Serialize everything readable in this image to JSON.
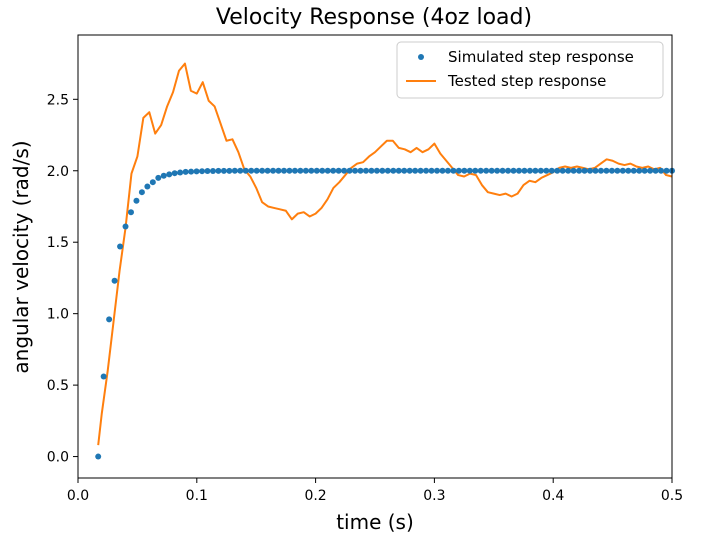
{
  "chart_data": {
    "type": "line",
    "title": "Velocity Response (4oz load)",
    "xlabel": "time (s)",
    "ylabel": "angular velocity (rad/s)",
    "xlim": [
      0.0,
      0.5
    ],
    "ylim": [
      -0.15,
      2.95
    ],
    "xticks": [
      "0.0",
      "0.1",
      "0.2",
      "0.3",
      "0.4",
      "0.5"
    ],
    "yticks": [
      "0.0",
      "0.5",
      "1.0",
      "1.5",
      "2.0",
      "2.5"
    ],
    "grid": false,
    "legend_position": "top-right",
    "series": [
      {
        "name": "Simulated step response",
        "style": "markers",
        "color": "#1f77b4",
        "x": [
          0.017,
          0.0216,
          0.0262,
          0.0308,
          0.0354,
          0.04,
          0.0446,
          0.0492,
          0.0538,
          0.0584,
          0.063,
          0.0676,
          0.0722,
          0.0768,
          0.0814,
          0.086,
          0.0906,
          0.0952,
          0.0998,
          0.1044,
          0.109,
          0.1136,
          0.1182,
          0.1228,
          0.1274,
          0.132,
          0.1366,
          0.1412,
          0.1458,
          0.1504,
          0.155,
          0.1596,
          0.1642,
          0.1688,
          0.1734,
          0.178,
          0.1826,
          0.1872,
          0.1918,
          0.1964,
          0.201,
          0.2056,
          0.2102,
          0.2148,
          0.2194,
          0.224,
          0.2286,
          0.2332,
          0.2378,
          0.2424,
          0.247,
          0.2516,
          0.2562,
          0.2608,
          0.2654,
          0.27,
          0.2746,
          0.2792,
          0.2838,
          0.2884,
          0.293,
          0.2976,
          0.3022,
          0.3068,
          0.3114,
          0.316,
          0.3206,
          0.3252,
          0.3298,
          0.3344,
          0.339,
          0.3436,
          0.3482,
          0.3528,
          0.3574,
          0.362,
          0.3666,
          0.3712,
          0.3758,
          0.3804,
          0.385,
          0.3896,
          0.3942,
          0.3988,
          0.4034,
          0.408,
          0.4126,
          0.4172,
          0.4218,
          0.4264,
          0.431,
          0.4356,
          0.4402,
          0.4448,
          0.4494,
          0.454,
          0.4586,
          0.4632,
          0.4678,
          0.4724,
          0.477,
          0.4816,
          0.4862,
          0.4908,
          0.4954,
          0.5
        ],
        "y": [
          0.0,
          0.56,
          0.96,
          1.23,
          1.47,
          1.61,
          1.71,
          1.79,
          1.85,
          1.89,
          1.92,
          1.95,
          1.965,
          1.975,
          1.983,
          1.988,
          1.992,
          1.994,
          1.996,
          1.997,
          1.998,
          1.998,
          1.999,
          1.999,
          1.999,
          2.0,
          2.0,
          2.0,
          2.0,
          2.0,
          2.0,
          2.0,
          2.0,
          2.0,
          2.0,
          2.0,
          2.0,
          2.0,
          2.0,
          2.0,
          2.0,
          2.0,
          2.0,
          2.0,
          2.0,
          2.0,
          2.0,
          2.0,
          2.0,
          2.0,
          2.0,
          2.0,
          2.0,
          2.0,
          2.0,
          2.0,
          2.0,
          2.0,
          2.0,
          2.0,
          2.0,
          2.0,
          2.0,
          2.0,
          2.0,
          2.0,
          2.0,
          2.0,
          2.0,
          2.0,
          2.0,
          2.0,
          2.0,
          2.0,
          2.0,
          2.0,
          2.0,
          2.0,
          2.0,
          2.0,
          2.0,
          2.0,
          2.0,
          2.0,
          2.0,
          2.0,
          2.0,
          2.0,
          2.0,
          2.0,
          2.0,
          2.0,
          2.0,
          2.0,
          2.0,
          2.0,
          2.0,
          2.0,
          2.0,
          2.0,
          2.0,
          2.0,
          2.0,
          2.0,
          2.0,
          2.0
        ]
      },
      {
        "name": "Tested step response",
        "style": "line",
        "color": "#ff7f0e",
        "x": [
          0.017,
          0.02,
          0.025,
          0.03,
          0.035,
          0.04,
          0.045,
          0.05,
          0.055,
          0.06,
          0.065,
          0.07,
          0.075,
          0.08,
          0.085,
          0.09,
          0.095,
          0.1,
          0.105,
          0.11,
          0.115,
          0.12,
          0.125,
          0.13,
          0.135,
          0.14,
          0.145,
          0.15,
          0.155,
          0.16,
          0.165,
          0.17,
          0.175,
          0.18,
          0.185,
          0.19,
          0.195,
          0.2,
          0.205,
          0.21,
          0.215,
          0.22,
          0.225,
          0.23,
          0.235,
          0.24,
          0.245,
          0.25,
          0.255,
          0.26,
          0.265,
          0.27,
          0.275,
          0.28,
          0.285,
          0.29,
          0.295,
          0.3,
          0.305,
          0.31,
          0.315,
          0.32,
          0.325,
          0.33,
          0.335,
          0.34,
          0.345,
          0.35,
          0.355,
          0.36,
          0.365,
          0.37,
          0.375,
          0.38,
          0.385,
          0.39,
          0.395,
          0.4,
          0.405,
          0.41,
          0.415,
          0.42,
          0.425,
          0.43,
          0.435,
          0.44,
          0.445,
          0.45,
          0.455,
          0.46,
          0.465,
          0.47,
          0.475,
          0.48,
          0.485,
          0.49,
          0.495,
          0.5
        ],
        "y": [
          0.08,
          0.3,
          0.6,
          0.95,
          1.3,
          1.6,
          1.98,
          2.1,
          2.37,
          2.41,
          2.26,
          2.32,
          2.45,
          2.55,
          2.7,
          2.75,
          2.56,
          2.54,
          2.62,
          2.49,
          2.45,
          2.33,
          2.21,
          2.22,
          2.13,
          2.01,
          1.96,
          1.88,
          1.78,
          1.75,
          1.74,
          1.73,
          1.72,
          1.66,
          1.7,
          1.71,
          1.68,
          1.7,
          1.74,
          1.8,
          1.88,
          1.92,
          1.97,
          2.02,
          2.05,
          2.06,
          2.1,
          2.13,
          2.17,
          2.21,
          2.21,
          2.16,
          2.15,
          2.13,
          2.16,
          2.13,
          2.15,
          2.19,
          2.12,
          2.07,
          2.02,
          1.97,
          1.96,
          1.98,
          1.97,
          1.9,
          1.85,
          1.84,
          1.83,
          1.84,
          1.82,
          1.84,
          1.9,
          1.93,
          1.92,
          1.95,
          1.97,
          1.99,
          2.02,
          2.03,
          2.02,
          2.03,
          2.02,
          2.01,
          2.02,
          2.05,
          2.08,
          2.07,
          2.05,
          2.04,
          2.05,
          2.03,
          2.02,
          2.03,
          2.01,
          2.02,
          1.97,
          1.96
        ]
      }
    ]
  },
  "colors": {
    "simulated": "#1f77b4",
    "tested": "#ff7f0e",
    "axes": "#000000",
    "background": "#ffffff"
  }
}
